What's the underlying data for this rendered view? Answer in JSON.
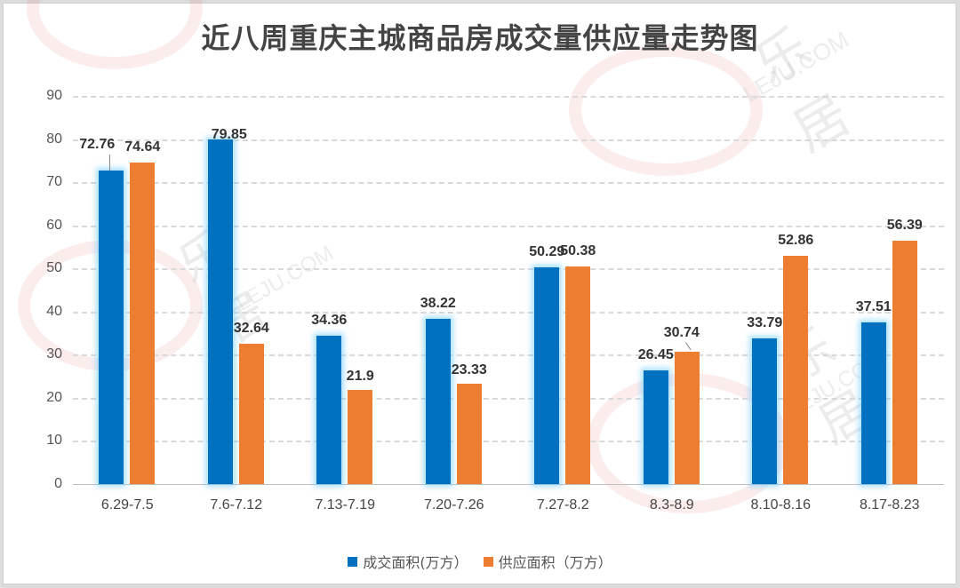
{
  "chart_data": {
    "type": "bar",
    "title": "近八周重庆主城商品房成交量供应量走势图",
    "xlabel": "",
    "ylabel": "",
    "ylim": [
      0,
      90
    ],
    "yticks": [
      0,
      10,
      20,
      30,
      40,
      50,
      60,
      70,
      80,
      90
    ],
    "grid": true,
    "legend_position": "bottom",
    "categories": [
      "6.29-7.5",
      "7.6-7.12",
      "7.13-7.19",
      "7.20-7.26",
      "7.27-8.2",
      "8.3-8.9",
      "8.10-8.16",
      "8.17-8.23"
    ],
    "series": [
      {
        "name": "成交面积(万方）",
        "color": "#0070c0",
        "values": [
          72.76,
          79.85,
          34.36,
          38.22,
          50.29,
          26.45,
          33.79,
          37.51
        ],
        "labels": [
          "72.76",
          "79.85",
          "34.36",
          "38.22",
          "50.29",
          "26.45",
          "33.79",
          "37.51"
        ]
      },
      {
        "name": "供应面积（万方）",
        "color": "#ed7d31",
        "values": [
          74.64,
          32.64,
          21.9,
          23.33,
          50.38,
          30.74,
          52.86,
          56.39
        ],
        "labels": [
          "74.64",
          "32.64",
          "21.9",
          "23.33",
          "50.38",
          "30.74",
          "52.86",
          "56.39"
        ]
      }
    ]
  },
  "watermark": {
    "brand": "LEJU",
    "cn": "乐居",
    "domain": "LEJU.COM"
  }
}
